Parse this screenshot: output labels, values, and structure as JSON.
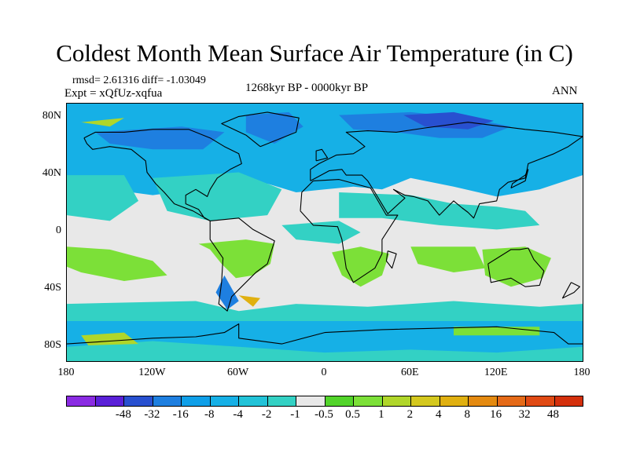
{
  "title": "Coldest Month Mean Surface Air Temperature (in C)",
  "stats_text": "rmsd= 2.61316 diff= -1.03049",
  "expt_text": "Expt = xQfUz-xqfua",
  "period_text": "1268kyr BP - 0000kyr BP",
  "season_text": "ANN",
  "map": {
    "projection": "cylindrical equidistant",
    "lon_range": [
      -180,
      180
    ],
    "lat_range": [
      -90,
      90
    ],
    "y_ticks": [
      {
        "label": "80N",
        "lat": 80
      },
      {
        "label": "40N",
        "lat": 40
      },
      {
        "label": "0",
        "lat": 0
      },
      {
        "label": "40S",
        "lat": -40
      },
      {
        "label": "80S",
        "lat": -80
      }
    ],
    "x_ticks": [
      {
        "label": "180",
        "lon": -180
      },
      {
        "label": "120W",
        "lon": -120
      },
      {
        "label": "60W",
        "lon": -60
      },
      {
        "label": "0",
        "lon": 0
      },
      {
        "label": "60E",
        "lon": 60
      },
      {
        "label": "120E",
        "lon": 120
      },
      {
        "label": "180",
        "lon": 180
      }
    ],
    "colors": {
      "neutral": "#e8e8e8",
      "cool_1": "#33d1c4",
      "cool_2": "#16b0e6",
      "cool_3": "#1e7fe0",
      "cool_4": "#2850d0",
      "warm_1": "#7ce038",
      "warm_2": "#b0d62a",
      "warm_3": "#e0b010",
      "coastline": "#000000"
    }
  },
  "colorbar": {
    "colors": [
      "#8a2be2",
      "#5a20d8",
      "#2850d0",
      "#1e7fe0",
      "#0f9fe8",
      "#16b0e6",
      "#22c3d8",
      "#33d1c4",
      "#e8e8e8",
      "#52d42a",
      "#7ce038",
      "#b0d62a",
      "#d4c81e",
      "#e0b010",
      "#e48a10",
      "#e56a18",
      "#e04a14",
      "#d4300c"
    ],
    "labels": [
      "-48",
      "-32",
      "-16",
      "-8",
      "-4",
      "-2",
      "-1",
      "-0.5",
      "0.5",
      "1",
      "2",
      "4",
      "8",
      "16",
      "32",
      "48"
    ]
  }
}
